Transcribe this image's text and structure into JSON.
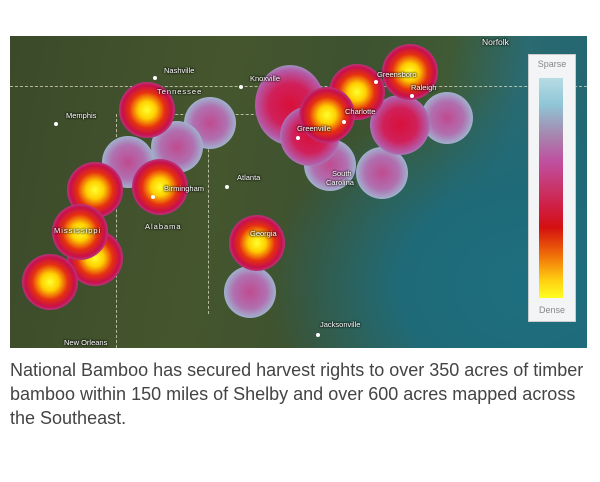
{
  "map": {
    "cities": [
      "Nashville",
      "Memphis",
      "Knoxville",
      "Birmingham",
      "Atlanta",
      "New Orleans",
      "Greenville",
      "Charlotte",
      "Greensboro",
      "Raleigh",
      "Norfolk",
      "Jacksonville"
    ],
    "states": [
      "Tennessee",
      "Alabama",
      "Mississippi",
      "Georgia",
      "South",
      "Carolina"
    ],
    "legend": {
      "top_label": "Sparse",
      "bottom_label": "Dense"
    },
    "colors": {
      "sparse": "#8fc6d6",
      "mid": "#c050a0",
      "high": "#d41010",
      "dense": "#ffff20"
    }
  },
  "caption": "National Bamboo has secured harvest rights to over 350 acres of timber bamboo within 150 miles of Shelby and over 600 acres mapped across the Southeast."
}
